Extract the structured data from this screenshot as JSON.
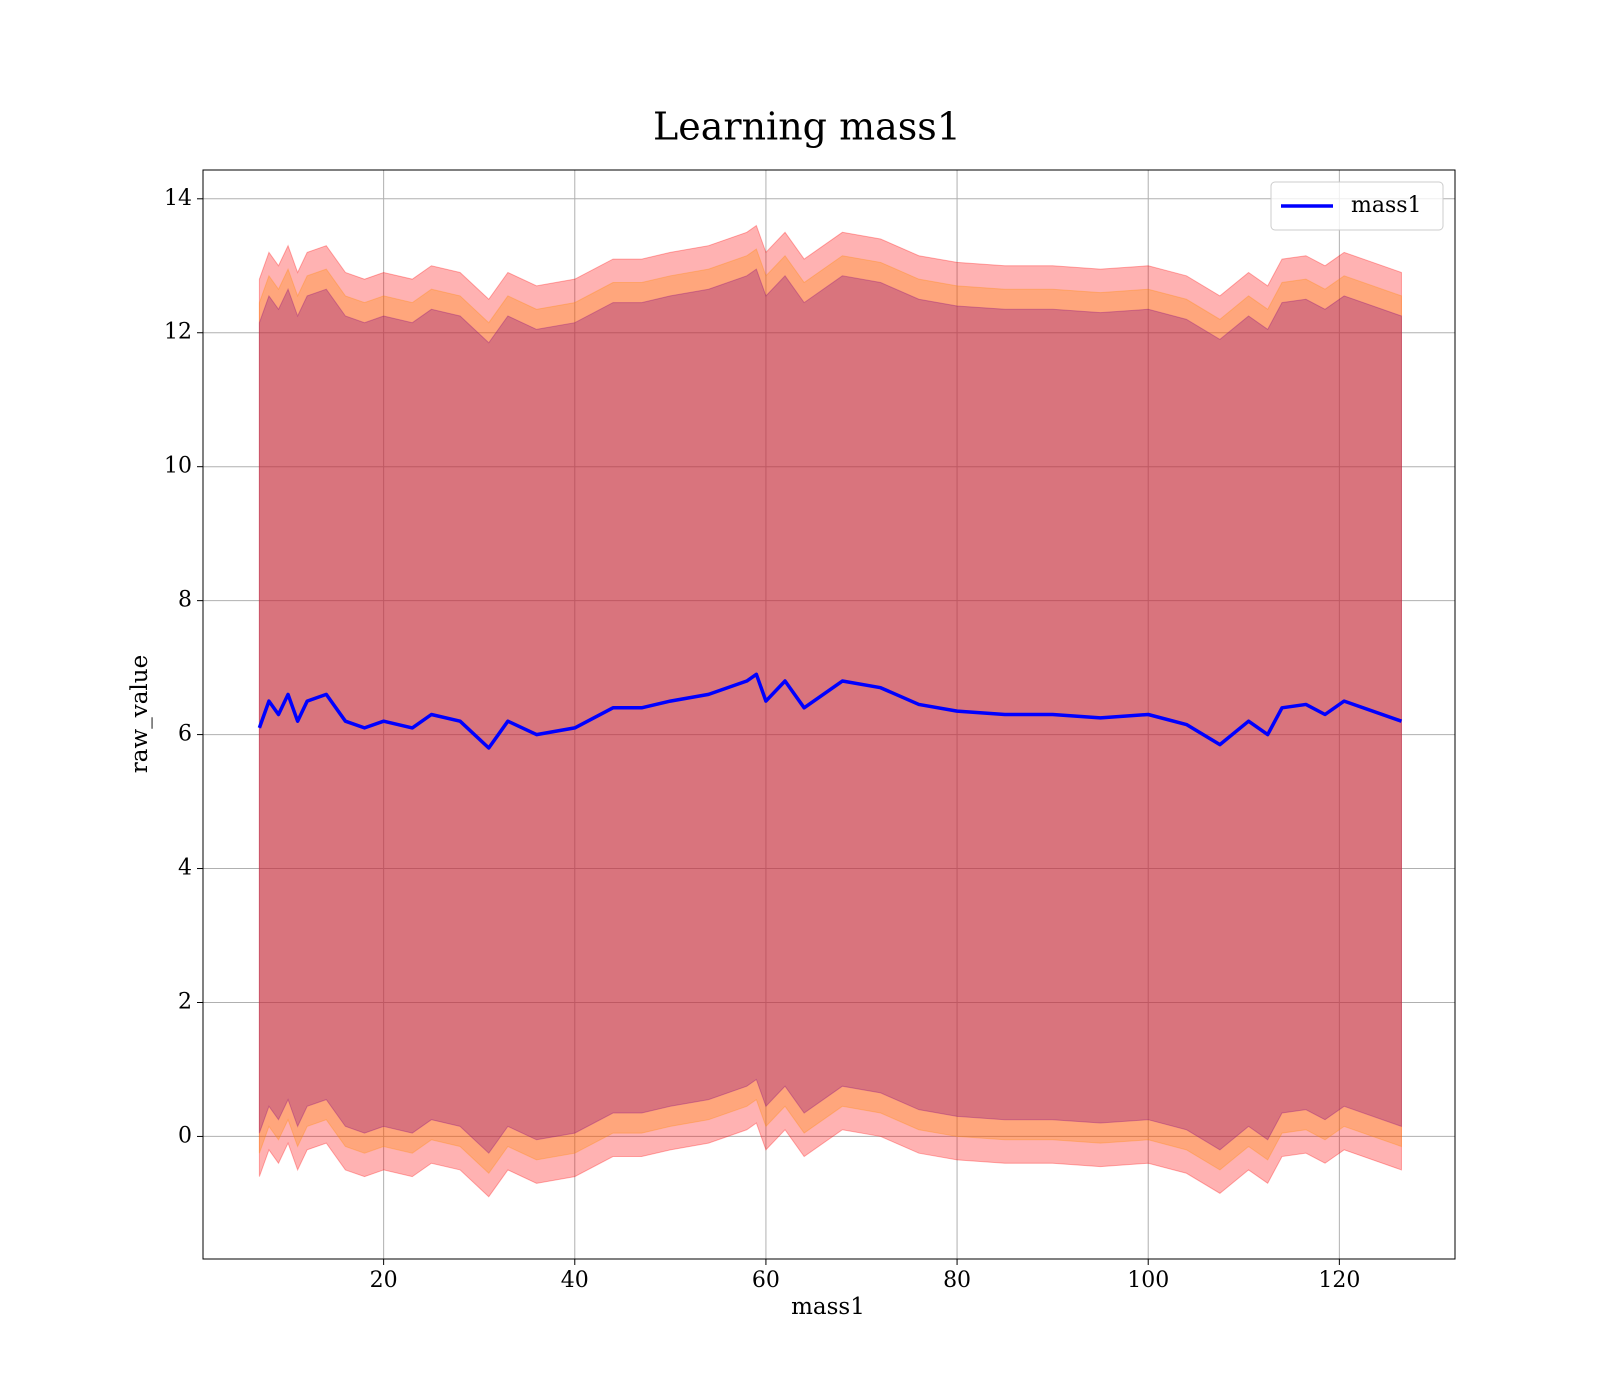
{
  "chart_data": {
    "type": "line",
    "title": "Learning mass1",
    "x_label": "mass1",
    "y_label": "raw_value",
    "x": [
      7,
      8,
      9,
      10,
      11,
      12,
      14,
      16,
      18,
      20,
      23,
      25,
      28,
      31,
      33,
      36,
      40,
      44,
      47,
      50,
      54,
      58,
      59,
      60,
      62,
      64,
      68,
      72,
      76,
      80,
      85,
      90,
      95,
      100,
      104,
      107.5,
      110.5,
      112.5,
      114,
      116.5,
      118.5,
      120.5,
      126.5
    ],
    "series": [
      {
        "name": "mass1",
        "color": "#0000ff",
        "values": [
          6.1,
          6.5,
          6.3,
          6.6,
          6.2,
          6.5,
          6.6,
          6.2,
          6.1,
          6.2,
          6.1,
          6.3,
          6.2,
          5.8,
          6.2,
          6.0,
          6.1,
          6.4,
          6.4,
          6.5,
          6.6,
          6.8,
          6.9,
          6.5,
          6.8,
          6.4,
          6.8,
          6.7,
          6.45,
          6.35,
          6.3,
          6.3,
          6.25,
          6.3,
          6.15,
          5.85,
          6.2,
          6.0,
          6.4,
          6.45,
          6.3,
          6.5,
          6.2
        ]
      }
    ],
    "bands": [
      {
        "color": "#ff0000",
        "alpha": 0.3,
        "upper": [
          12.8,
          13.2,
          13.0,
          13.3,
          12.9,
          13.2,
          13.3,
          12.9,
          12.8,
          12.9,
          12.8,
          13.0,
          12.9,
          12.5,
          12.9,
          12.7,
          12.8,
          13.1,
          13.1,
          13.2,
          13.3,
          13.5,
          13.6,
          13.2,
          13.5,
          13.1,
          13.5,
          13.4,
          13.15,
          13.05,
          13.0,
          13.0,
          12.95,
          13.0,
          12.85,
          12.55,
          12.9,
          12.7,
          13.1,
          13.15,
          13.0,
          13.2,
          12.9
        ],
        "lower": [
          -0.6,
          -0.2,
          -0.4,
          -0.1,
          -0.5,
          -0.2,
          -0.1,
          -0.5,
          -0.6,
          -0.5,
          -0.6,
          -0.4,
          -0.5,
          -0.9,
          -0.5,
          -0.7,
          -0.6,
          -0.3,
          -0.3,
          -0.2,
          -0.1,
          0.1,
          0.2,
          -0.2,
          0.1,
          -0.3,
          0.1,
          0.0,
          -0.25,
          -0.35,
          -0.4,
          -0.4,
          -0.45,
          -0.4,
          -0.55,
          -0.85,
          -0.5,
          -0.7,
          -0.3,
          -0.25,
          -0.4,
          -0.2,
          -0.5
        ]
      },
      {
        "color": "#ff8c00",
        "alpha": 0.3,
        "upper": [
          12.45,
          12.85,
          12.65,
          12.95,
          12.55,
          12.85,
          12.95,
          12.55,
          12.45,
          12.55,
          12.45,
          12.65,
          12.55,
          12.15,
          12.55,
          12.35,
          12.45,
          12.75,
          12.75,
          12.85,
          12.95,
          13.15,
          13.25,
          12.85,
          13.15,
          12.75,
          13.15,
          13.05,
          12.8,
          12.7,
          12.65,
          12.65,
          12.6,
          12.65,
          12.5,
          12.2,
          12.55,
          12.35,
          12.75,
          12.8,
          12.65,
          12.85,
          12.55
        ],
        "lower": [
          -0.25,
          0.15,
          -0.05,
          0.25,
          -0.15,
          0.15,
          0.25,
          -0.15,
          -0.25,
          -0.15,
          -0.25,
          -0.05,
          -0.15,
          -0.55,
          -0.15,
          -0.35,
          -0.25,
          0.05,
          0.05,
          0.15,
          0.25,
          0.45,
          0.55,
          0.15,
          0.45,
          0.05,
          0.45,
          0.35,
          0.1,
          0.0,
          -0.05,
          -0.05,
          -0.1,
          -0.05,
          -0.2,
          -0.5,
          -0.15,
          -0.35,
          0.05,
          0.1,
          -0.05,
          0.15,
          -0.15
        ]
      },
      {
        "color": "#800080",
        "alpha": 0.3,
        "upper": [
          12.15,
          12.55,
          12.35,
          12.65,
          12.25,
          12.55,
          12.65,
          12.25,
          12.15,
          12.25,
          12.15,
          12.35,
          12.25,
          11.85,
          12.25,
          12.05,
          12.15,
          12.45,
          12.45,
          12.55,
          12.65,
          12.85,
          12.95,
          12.55,
          12.85,
          12.45,
          12.85,
          12.75,
          12.5,
          12.4,
          12.35,
          12.35,
          12.3,
          12.35,
          12.2,
          11.9,
          12.25,
          12.05,
          12.45,
          12.5,
          12.35,
          12.55,
          12.25
        ],
        "lower": [
          0.05,
          0.45,
          0.25,
          0.55,
          0.15,
          0.45,
          0.55,
          0.15,
          0.05,
          0.15,
          0.05,
          0.25,
          0.15,
          -0.25,
          0.15,
          -0.05,
          0.05,
          0.35,
          0.35,
          0.45,
          0.55,
          0.75,
          0.85,
          0.45,
          0.75,
          0.35,
          0.75,
          0.65,
          0.4,
          0.3,
          0.25,
          0.25,
          0.2,
          0.25,
          0.1,
          -0.2,
          0.15,
          -0.05,
          0.35,
          0.4,
          0.25,
          0.45,
          0.15
        ]
      }
    ],
    "xlim": [
      1.1,
      132.1
    ],
    "ylim": [
      -1.83,
      14.43
    ],
    "xticks": [
      20,
      40,
      60,
      80,
      100,
      120
    ],
    "yticks": [
      0,
      2,
      4,
      6,
      8,
      10,
      12,
      14
    ],
    "grid": true,
    "legend": "upper right"
  }
}
